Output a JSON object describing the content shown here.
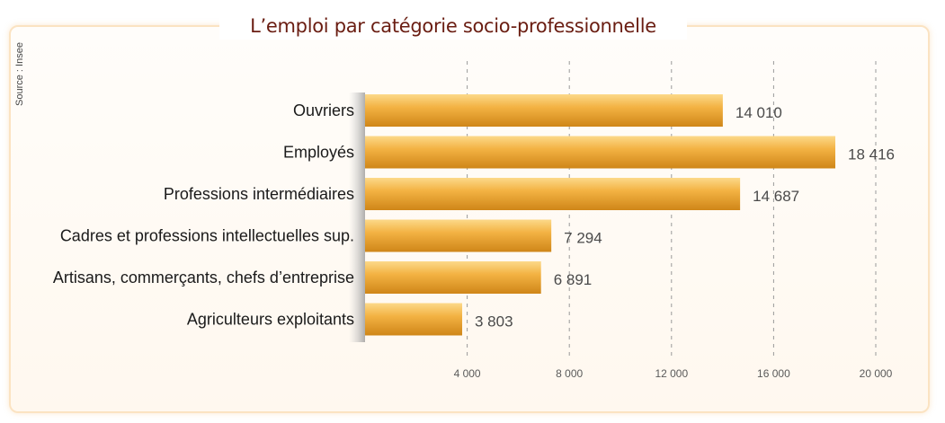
{
  "source_note": "Source : Insee",
  "chart_data": {
    "type": "bar",
    "orientation": "horizontal",
    "title": "L’emploi par catégorie socio-professionnelle",
    "categories": [
      "Ouvriers",
      "Employés",
      "Professions intermédiaires",
      "Cadres et professions intellectuelles sup.",
      "Artisans, commerçants, chefs d’entreprise",
      "Agriculteurs exploitants"
    ],
    "values": [
      14010,
      18416,
      14687,
      7294,
      6891,
      3803
    ],
    "value_labels": [
      "14 010",
      "18 416",
      "14 687",
      "7 294",
      "6 891",
      "3 803"
    ],
    "xlim": [
      0,
      20000
    ],
    "ticks": [
      4000,
      8000,
      12000,
      16000,
      20000
    ],
    "tick_labels": [
      "4 000",
      "8 000",
      "12 000",
      "16 000",
      "20 000"
    ],
    "grid": "vertical dashed",
    "bar_color": "#f0a936"
  }
}
